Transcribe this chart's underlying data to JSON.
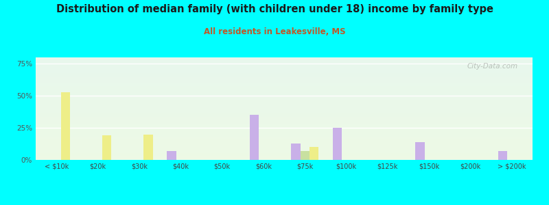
{
  "title": "Distribution of median family (with children under 18) income by family type",
  "subtitle": "All residents in Leakesville, MS",
  "categories": [
    "< $10k",
    "$20k",
    "$30k",
    "$40k",
    "$50k",
    "$60k",
    "$75k",
    "$100k",
    "$125k",
    "$150k",
    "$200k",
    "> $200k"
  ],
  "married_couple": [
    0,
    0,
    0,
    7,
    0,
    35,
    13,
    25,
    0,
    14,
    0,
    7
  ],
  "male_no_wife": [
    0,
    0,
    0,
    0,
    0,
    0,
    7,
    0,
    0,
    0,
    0,
    0
  ],
  "female_no_husband": [
    53,
    19,
    20,
    0,
    0,
    0,
    10,
    0,
    0,
    0,
    0,
    0
  ],
  "bar_width": 0.22,
  "color_married": "#c9b0e8",
  "color_male": "#c8e0a0",
  "color_female": "#eeee88",
  "background_color": "#00ffff",
  "ylim": [
    0,
    80
  ],
  "yticks": [
    0,
    25,
    50,
    75
  ],
  "ytick_labels": [
    "0%",
    "25%",
    "50%",
    "75%"
  ],
  "title_fontsize": 10.5,
  "subtitle_fontsize": 8.5,
  "watermark": "City-Data.com"
}
